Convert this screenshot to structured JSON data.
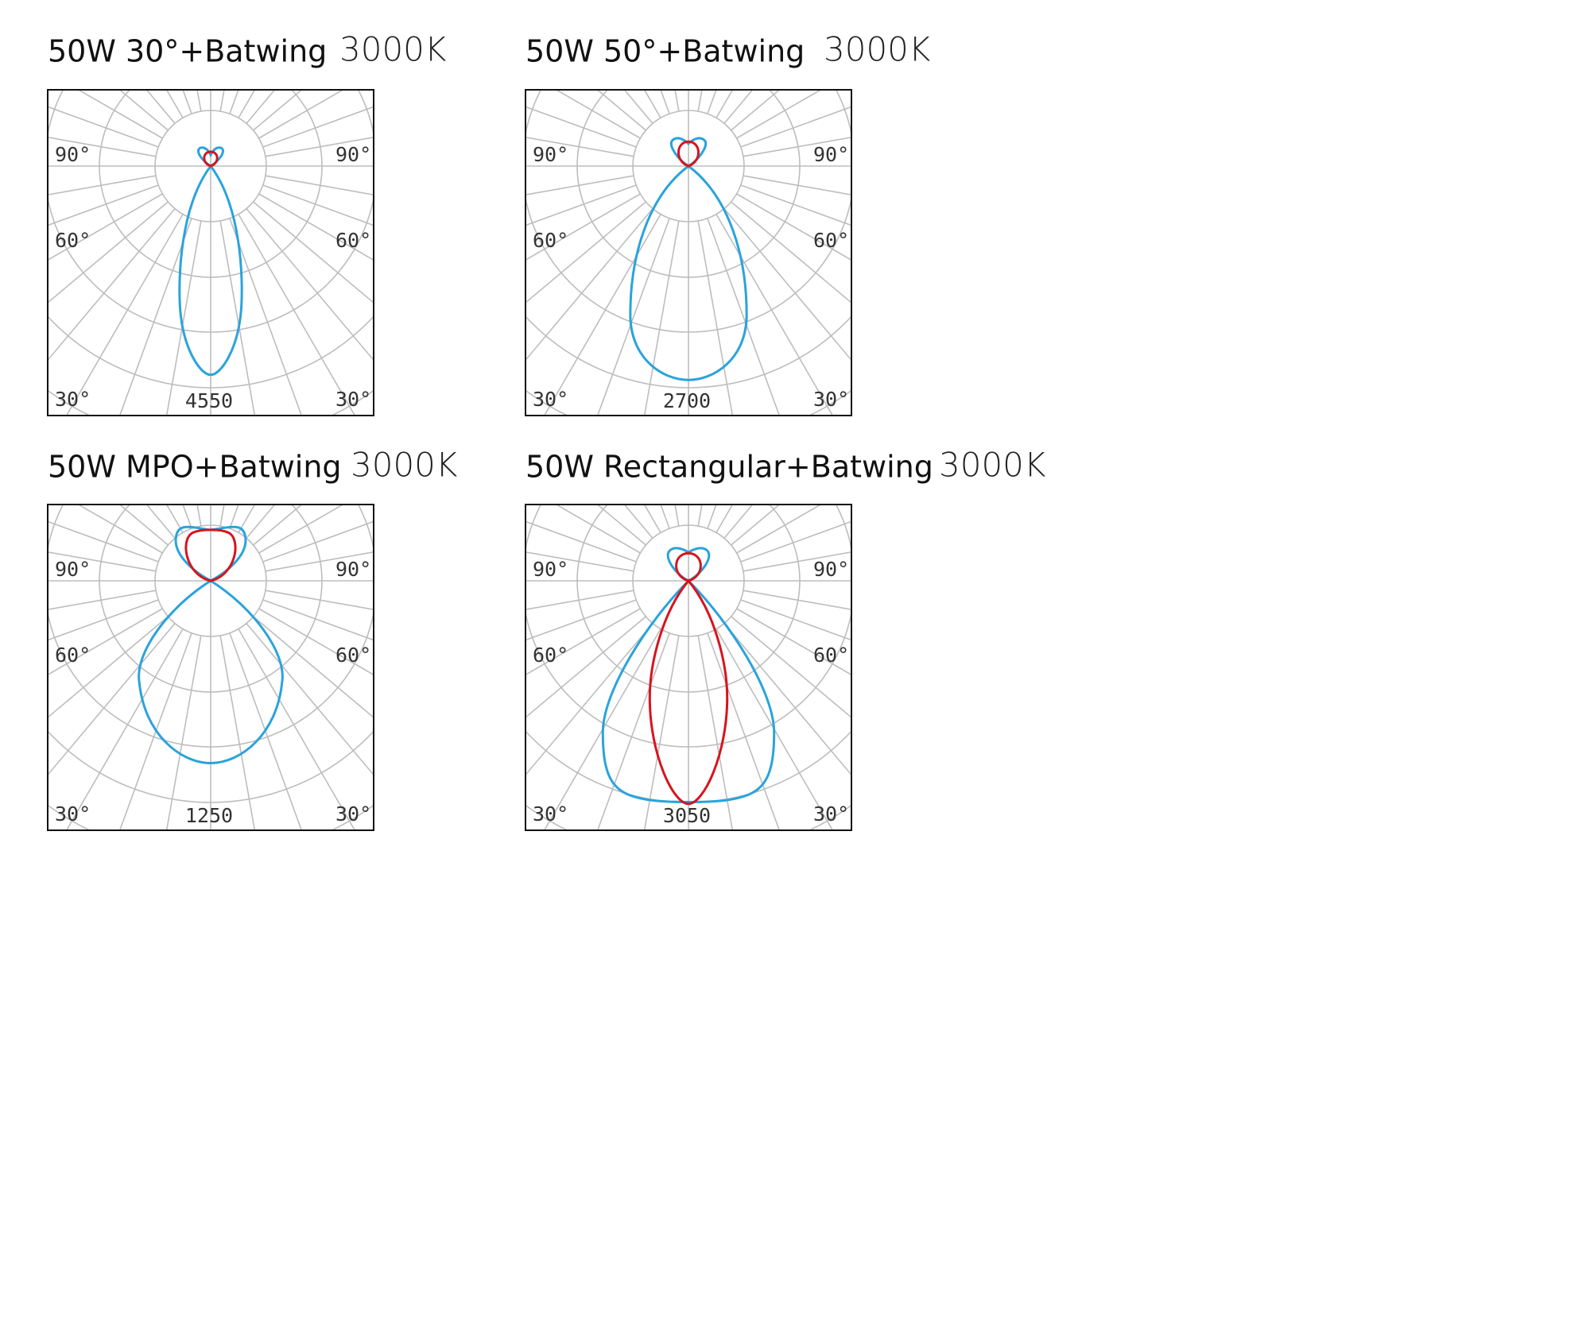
{
  "panels": [
    {
      "title": "50W 30°+Batwing",
      "cct": "3000K",
      "angles": [
        "90°",
        "60°",
        "30°"
      ],
      "max": 4550
    },
    {
      "title": "50W 50°+Batwing",
      "cct": "3000K",
      "angles": [
        "90°",
        "60°",
        "30°"
      ],
      "max": 2700
    },
    {
      "title": "50W MPO+Batwing",
      "cct": "3000K",
      "angles": [
        "90°",
        "60°",
        "30°"
      ],
      "max": 1250
    },
    {
      "title": "50W Rectangular+Batwing",
      "cct": "3000K",
      "angles": [
        "90°",
        "60°",
        "30°"
      ],
      "max": 3050
    }
  ]
}
